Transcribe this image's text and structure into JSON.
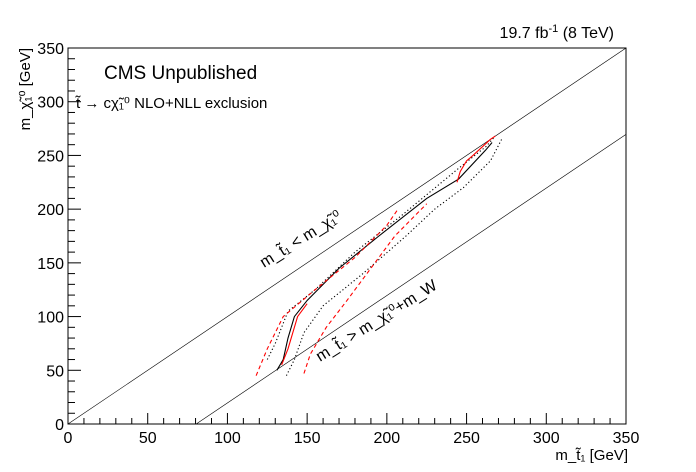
{
  "header": {
    "lumi_value": "19.7 fb",
    "lumi_exp": "-1",
    "lumi_energy": " (8 TeV)"
  },
  "annotations": {
    "cms_label": "CMS Unpublished",
    "process_label": "t̃ → cχ̃₁⁰ NLO+NLL exclusion",
    "line_label_upper": "m_t̃₁ < m_χ̃₁⁰",
    "line_label_lower": "m_t̃₁ > m_χ̃₁⁰+m_W"
  },
  "axes": {
    "xlabel": "m_t̃₁ [GeV]",
    "ylabel": "m_χ̃₁⁰ [GeV]"
  },
  "chart_data": {
    "type": "line",
    "xlim": [
      0,
      350
    ],
    "ylim": [
      0,
      350
    ],
    "xticks": [
      0,
      50,
      100,
      150,
      200,
      250,
      300,
      350
    ],
    "yticks": [
      0,
      50,
      100,
      150,
      200,
      250,
      300,
      350
    ],
    "grid": false,
    "diagonals": [
      {
        "name": "upper",
        "x": [
          0,
          350
        ],
        "y": [
          0,
          350
        ]
      },
      {
        "name": "lower",
        "x": [
          80.4,
          350
        ],
        "y": [
          0,
          269.6
        ]
      }
    ],
    "series": [
      {
        "color": "#000000",
        "dash": "solid",
        "x": [
          131,
          135,
          138,
          142,
          150,
          170,
          195,
          225,
          245,
          262,
          266
        ],
        "y": [
          50,
          60,
          80,
          100,
          115,
          145,
          175,
          210,
          228,
          255,
          262
        ]
      },
      {
        "color": "#000000",
        "dash": "dotted",
        "x": [
          125,
          130,
          138,
          155,
          180,
          210,
          245,
          262,
          268
        ],
        "y": [
          60,
          75,
          105,
          125,
          160,
          195,
          238,
          258,
          268
        ]
      },
      {
        "color": "#000000",
        "dash": "dotted",
        "x": [
          137,
          142,
          148,
          160,
          185,
          212,
          230,
          248,
          265,
          272
        ],
        "y": [
          45,
          60,
          85,
          110,
          140,
          175,
          200,
          220,
          245,
          265
        ]
      },
      {
        "color": "#ff0000",
        "dash": "solid",
        "x": [
          134,
          138,
          141,
          144,
          150
        ],
        "y": [
          55,
          70,
          85,
          100,
          112
        ]
      },
      {
        "color": "#ff0000",
        "dash": "solid",
        "x": [
          244,
          246,
          250,
          254,
          265,
          268
        ],
        "y": [
          225,
          235,
          245,
          250,
          265,
          268
        ]
      },
      {
        "color": "#ff0000",
        "dash": "dashed",
        "x": [
          118,
          125,
          135,
          155,
          180,
          200,
          207
        ],
        "y": [
          45,
          70,
          100,
          125,
          155,
          185,
          200
        ]
      },
      {
        "color": "#ff0000",
        "dash": "dashed",
        "x": [
          148,
          152,
          162,
          175,
          190,
          205,
          225
        ],
        "y": [
          47,
          65,
          90,
          115,
          145,
          175,
          205
        ]
      }
    ]
  }
}
